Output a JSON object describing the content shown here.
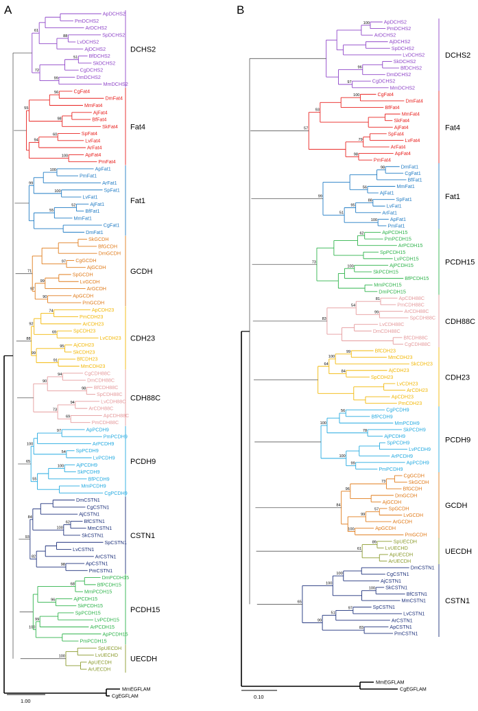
{
  "panels": [
    {
      "label": "A",
      "scale_label": "1.00",
      "clades": [
        {
          "name": "DCHS2",
          "color": "#8E44C8",
          "taxa": [
            "ApDCHS2",
            "PmDCHS2",
            "ArDCHS2",
            "SpDCHS2",
            "LvDCHS2",
            "AjDCHS2",
            "BfDCHS2",
            "SkDCHS2",
            "CgDCHS2",
            "DmDCHS2",
            "MmDCHS2"
          ]
        },
        {
          "name": "Fat4",
          "color": "#E8201E",
          "taxa": [
            "CgFat4",
            "DmFat4",
            "MmFat4",
            "AjFat4",
            "BfFat4",
            "SkFat4",
            "SpFat4",
            "LvFat4",
            "ArFat4",
            "ApFat4",
            "PmFat4"
          ]
        },
        {
          "name": "Fat1",
          "color": "#1F7BC4",
          "taxa": [
            "ApFat1",
            "PmFat1",
            "ArFat1",
            "SpFat1",
            "LvFat1",
            "AjFat1",
            "BfFat1",
            "MmFat1",
            "CgFat1",
            "DmFat1"
          ]
        },
        {
          "name": "GCDH",
          "color": "#E07B1A",
          "taxa": [
            "SkGCDH",
            "BfGCDH",
            "DmGCDH",
            "CgGCDH",
            "AjGCDH",
            "SpGCDH",
            "LvGCDH",
            "ArGCDH",
            "ApGCDH",
            "PmGCDH"
          ]
        },
        {
          "name": "CDH23",
          "color": "#F2B705",
          "taxa": [
            "ApCDH23",
            "PmCDH23",
            "ArCDH23",
            "SpCDH23",
            "LvCDH23",
            "AjCDH23",
            "SkCDH23",
            "BfCDH23",
            "MmCDH23"
          ]
        },
        {
          "name": "CDH88C",
          "color": "#E59A9C",
          "taxa": [
            "CgCDH88C",
            "DmCDH88C",
            "BfCDH88C",
            "SpCDH88C",
            "LvCDH88C",
            "ArCDH88C",
            "ApCDH88C",
            "PmCDH88C"
          ]
        },
        {
          "name": "PCDH9",
          "color": "#22A9E0",
          "taxa": [
            "ApPCDH9",
            "PmPCDH9",
            "ArPCDH9",
            "SpPCDH9",
            "LvPCDH9",
            "AjPCDH9",
            "SkPCDH9",
            "BfPCDH9",
            "MmPCDH9",
            "CgPCDH9"
          ]
        },
        {
          "name": "CSTN1",
          "color": "#1B2F7A",
          "taxa": [
            "DmCSTN1",
            "CgCSTN1",
            "AjCSTN1",
            "BfCSTN1",
            "MmCSTN1",
            "SkCSTN1",
            "SpCSTN1",
            "LvCSTN1",
            "ArCSTN1",
            "ApCSTN1",
            "PmCSTN1"
          ]
        },
        {
          "name": "PCDH15",
          "color": "#2DB34A",
          "taxa": [
            "DmPCDH15",
            "BfPCDH15",
            "MmPCDH15",
            "AjPCDH15",
            "SkPCDH15",
            "SpPCDH15",
            "LvPCDH15",
            "ArPCDH15",
            "ApPCDH15",
            "PmPCDH15"
          ]
        },
        {
          "name": "UECDH",
          "color": "#8A9A2B",
          "taxa": [
            "SpUECDH",
            "LvUECHD",
            "ApUECDH",
            "ArUECDH"
          ]
        }
      ],
      "outgroup": {
        "color": "#000000",
        "taxa": [
          "MmEGFLAM",
          "CgEGFLAM"
        ]
      },
      "supports": [
        "88",
        "61",
        "51",
        "99",
        "72",
        "56",
        "98",
        "55",
        "60",
        "94",
        "100",
        "100",
        "100",
        "99",
        "52",
        "55",
        "97",
        "99",
        "90",
        "97",
        "71",
        "74",
        "69",
        "92",
        "95",
        "91",
        "99",
        "88",
        "94",
        "98",
        "90",
        "94",
        "69",
        "73",
        "97",
        "54",
        "100",
        "100",
        "55",
        "65",
        "62",
        "100",
        "84",
        "98",
        "82",
        "93",
        "68",
        "96",
        "99",
        "100",
        "100",
        "100",
        "100",
        "100",
        "100"
      ]
    },
    {
      "label": "B",
      "scale_label": "0.10",
      "clades": [
        {
          "name": "DCHS2",
          "color": "#8E44C8",
          "taxa": [
            "ApDCHS2",
            "PmDCHS2",
            "ArDCHS2",
            "AjDCHS2",
            "SpDCHS2",
            "LvDCHS2",
            "SkDCHS2",
            "BfDCHS2",
            "DmDCHS2",
            "CgDCHS2",
            "MmDCHS2"
          ]
        },
        {
          "name": "Fat4",
          "color": "#E8201E",
          "taxa": [
            "CgFat4",
            "DmFat4",
            "BfFat4",
            "MmFat4",
            "SkFat4",
            "AjFat4",
            "SpFat4",
            "LvFat4",
            "ArFat4",
            "ApFat4",
            "PmFat4"
          ]
        },
        {
          "name": "Fat1",
          "color": "#1F7BC4",
          "taxa": [
            "DmFat1",
            "CgFat1",
            "BfFat1",
            "MmFat1",
            "AjFat1",
            "SpFat1",
            "LvFat1",
            "ArFat1",
            "ApFat1",
            "PmFat1"
          ]
        },
        {
          "name": "PCDH15",
          "color": "#2DB34A",
          "taxa": [
            "ApPCDH15",
            "PmPCDH15",
            "ArPCDH15",
            "SpPCDH15",
            "LvPCDH15",
            "AjPCDH15",
            "SkPCDH15",
            "BfPCDH15",
            "MmPCDH15",
            "DmPCDH15"
          ]
        },
        {
          "name": "CDH88C",
          "color": "#E59A9C",
          "taxa": [
            "ApCDH88C",
            "PmCDH88C",
            "ArCDH88C",
            "SpCDH88C",
            "LvCDH88C",
            "DmCDH88C",
            "BfCDH88C",
            "CgCDH88C"
          ]
        },
        {
          "name": "CDH23",
          "color": "#F2B705",
          "taxa": [
            "BfCDH23",
            "MmCDH23",
            "SkCDH23",
            "AjCDH23",
            "SpCDH23",
            "LvCDH23",
            "ArCDH23",
            "ApCDH23",
            "PmCDH23"
          ]
        },
        {
          "name": "PCDH9",
          "color": "#22A9E0",
          "taxa": [
            "CgPCDH9",
            "BfPCDH9",
            "MmPCDH9",
            "SkPCDH9",
            "AjPCDH9",
            "SpPCDH9",
            "LvPCDH9",
            "ArPCDH9",
            "ApPCDH9",
            "PmPCDH9"
          ]
        },
        {
          "name": "GCDH",
          "color": "#E07B1A",
          "taxa": [
            "CgGCDH",
            "SkGCDH",
            "BfGCDH",
            "DmGCDH",
            "AjGCDH",
            "SpGCDH",
            "LvGCDH",
            "ArGCDH",
            "ApGCDH",
            "PmGCDH"
          ]
        },
        {
          "name": "UECDH",
          "color": "#8A9A2B",
          "taxa": [
            "SpUECDH",
            "LvUECHD",
            "ApUECDH",
            "ArUECDH"
          ]
        },
        {
          "name": "CSTN1",
          "color": "#1B2F7A",
          "taxa": [
            "DmCSTN1",
            "CgCSTN1",
            "AjCSTN1",
            "SkCSTN1",
            "BfCSTN1",
            "MmCSTN1",
            "SpCSTN1",
            "LvCSTN1",
            "ArCSTN1",
            "ApCSTN1",
            "PmCSTN1"
          ]
        }
      ],
      "outgroup": {
        "color": "#000000",
        "taxa": [
          "MmEGFLAM",
          "CgEGFLAM"
        ]
      },
      "supports": [
        "100",
        "96",
        "97",
        "100",
        "93",
        "79",
        "98",
        "57",
        "98",
        "56",
        "88",
        "95",
        "100",
        "51",
        "99",
        "62",
        "100",
        "73",
        "81",
        "99",
        "54",
        "83",
        "99",
        "100",
        "84",
        "64",
        "56",
        "78",
        "100",
        "99",
        "100",
        "73",
        "96",
        "57",
        "99",
        "100",
        "84",
        "89",
        "61",
        "100",
        "100",
        "100",
        "97",
        "51",
        "83",
        "99",
        "65",
        "78",
        "94",
        "100",
        "100"
      ]
    }
  ]
}
